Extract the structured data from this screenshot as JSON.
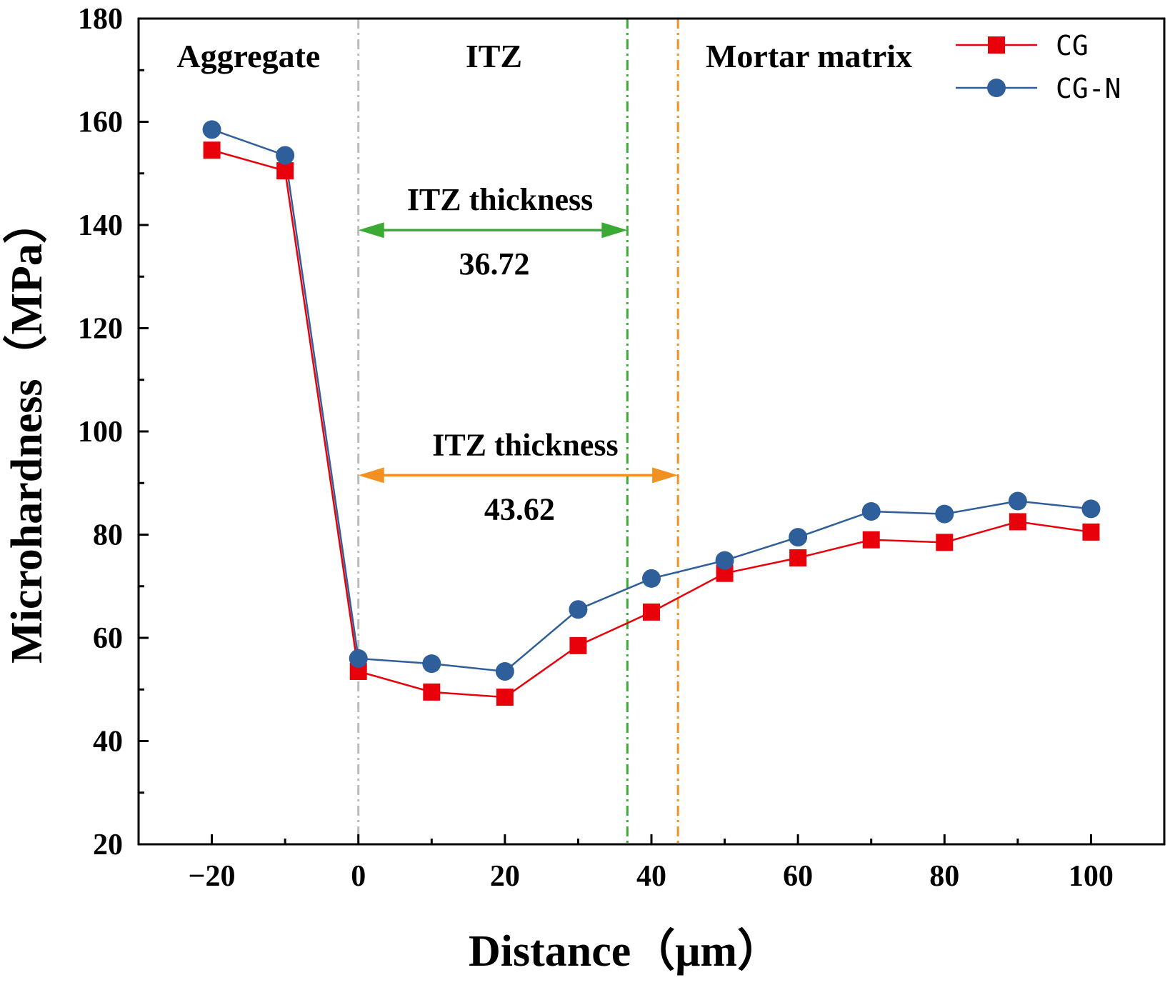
{
  "chart_data": {
    "type": "line",
    "title": "",
    "xlabel": "Distance（μm）",
    "ylabel": "Microhardness（MPa）",
    "xlim": [
      -30,
      110
    ],
    "ylim": [
      20,
      180
    ],
    "xticks": [
      -20,
      0,
      20,
      40,
      60,
      80,
      100
    ],
    "xtick_labels": [
      "−20",
      "0",
      "20",
      "40",
      "60",
      "80",
      "100"
    ],
    "yticks": [
      20,
      40,
      60,
      80,
      100,
      120,
      140,
      160,
      180
    ],
    "ytick_labels": [
      "20",
      "40",
      "60",
      "80",
      "100",
      "120",
      "140",
      "160",
      "180"
    ],
    "x": [
      -20,
      -10,
      0,
      10,
      20,
      30,
      40,
      50,
      60,
      70,
      80,
      90,
      100
    ],
    "series": [
      {
        "name": "CG",
        "color": "#e8000b",
        "marker": "square",
        "values": [
          154.5,
          150.5,
          53.5,
          49.5,
          48.5,
          58.5,
          65.0,
          72.5,
          75.5,
          79.0,
          78.5,
          82.5,
          80.5
        ]
      },
      {
        "name": "CG-N",
        "color": "#2f5f9a",
        "marker": "circle",
        "values": [
          158.5,
          153.5,
          56.0,
          55.0,
          53.5,
          65.5,
          71.5,
          75.0,
          79.5,
          84.5,
          84.0,
          86.5,
          85.0
        ]
      }
    ],
    "legend_position": "top-right",
    "grid": false,
    "regions": [
      {
        "label": "Aggregate",
        "x": -15
      },
      {
        "label": "ITZ",
        "x": 18.5
      },
      {
        "label": "Mortar matrix",
        "x": 61.5
      }
    ],
    "vlines": [
      {
        "x": 0,
        "color": "#bbbbbb",
        "style": "dashdot"
      },
      {
        "x": 36.72,
        "color": "#3aaa35",
        "style": "dashdot"
      },
      {
        "x": 43.62,
        "color": "#f39022",
        "style": "dashdot"
      }
    ],
    "annotations": [
      {
        "label": "ITZ thickness",
        "value": "36.72",
        "x_from": 0,
        "x_to": 36.72,
        "y": 139,
        "color": "#3aaa35"
      },
      {
        "label": "ITZ thickness",
        "value": "43.62",
        "x_from": 0,
        "x_to": 43.62,
        "y": 91.5,
        "color": "#f39022"
      }
    ]
  }
}
